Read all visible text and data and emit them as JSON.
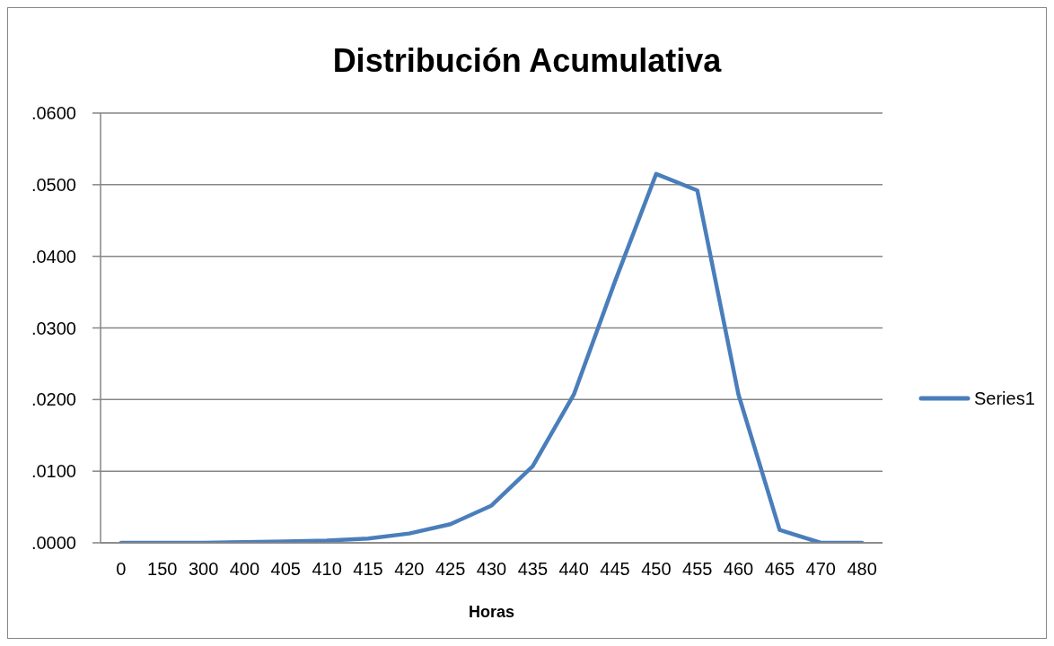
{
  "chart_data": {
    "type": "line",
    "title": "Distribución Acumulativa",
    "xlabel": "Horas",
    "categories": [
      "0",
      "150",
      "300",
      "400",
      "405",
      "410",
      "415",
      "420",
      "425",
      "430",
      "435",
      "440",
      "445",
      "450",
      "455",
      "460",
      "465",
      "470",
      "480"
    ],
    "series": [
      {
        "name": "Series1",
        "color": "#4a7ebb",
        "values": [
          0,
          0,
          0,
          0.0001,
          0.0002,
          0.0003,
          0.0006,
          0.0013,
          0.0026,
          0.0052,
          0.0107,
          0.0207,
          0.0365,
          0.0515,
          0.0492,
          0.0207,
          0.0018,
          0,
          0
        ]
      }
    ],
    "ylim": [
      0,
      0.06
    ],
    "yticks": [
      {
        "value": 0,
        "label": ".0000"
      },
      {
        "value": 0.01,
        "label": ".0100"
      },
      {
        "value": 0.02,
        "label": ".0200"
      },
      {
        "value": 0.03,
        "label": ".0300"
      },
      {
        "value": 0.04,
        "label": ".0400"
      },
      {
        "value": 0.05,
        "label": ".0500"
      },
      {
        "value": 0.06,
        "label": ".0600"
      }
    ],
    "grid": "y",
    "legend": "right",
    "line_style": "solid"
  }
}
